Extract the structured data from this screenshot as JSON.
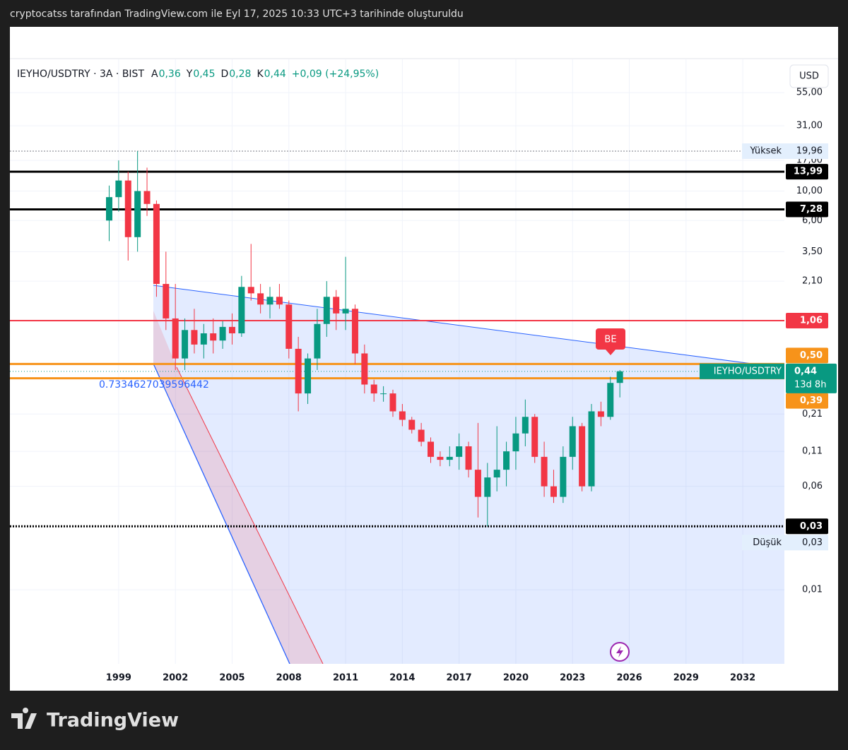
{
  "top_bar": "cryptocatss tarafından TradingView.com ile Eyl 17, 2025 10:33 UTC+3 tarihinde oluşturuldu",
  "footer": "TradingView",
  "chart_data": {
    "type": "candlestick",
    "legend": {
      "symbol": "IEYHO/USDTRY · 3A · BIST",
      "fields": [
        {
          "key": "A",
          "value": "0,36"
        },
        {
          "key": "Y",
          "value": "0,45"
        },
        {
          "key": "D",
          "value": "0,28"
        },
        {
          "key": "K",
          "value": "0,44"
        }
      ],
      "change": "+0,09 (+24,95%)"
    },
    "currency": "USD",
    "up_color": "#089981",
    "down_color": "#f23645",
    "x": [
      1998.5,
      1999,
      1999.5,
      2000,
      2000.5,
      2001,
      2001.5,
      2002,
      2002.5,
      2003,
      2003.5,
      2004,
      2004.5,
      2005,
      2005.5,
      2006,
      2006.5,
      2007,
      2007.5,
      2008,
      2008.5,
      2009,
      2009.5,
      2010,
      2010.5,
      2011,
      2011.5,
      2012,
      2012.5,
      2013,
      2013.5,
      2014,
      2014.5,
      2015,
      2015.5,
      2016,
      2016.5,
      2017,
      2017.5,
      2018,
      2018.5,
      2019,
      2019.5,
      2020,
      2020.5,
      2021,
      2021.5,
      2022,
      2022.5,
      2023,
      2023.5,
      2024,
      2024.5,
      2025,
      2025.5
    ],
    "open": [
      6,
      9,
      12,
      4.5,
      10,
      8,
      2.0,
      1.1,
      0.55,
      0.9,
      0.7,
      0.85,
      0.75,
      0.95,
      0.85,
      1.9,
      1.7,
      1.4,
      1.6,
      1.4,
      0.65,
      0.3,
      0.55,
      1.0,
      1.6,
      1.2,
      1.3,
      0.6,
      0.35,
      0.3,
      0.3,
      0.22,
      0.19,
      0.16,
      0.13,
      0.1,
      0.095,
      0.1,
      0.12,
      0.08,
      0.05,
      0.07,
      0.08,
      0.11,
      0.15,
      0.2,
      0.1,
      0.06,
      0.05,
      0.1,
      0.17,
      0.06,
      0.22,
      0.2,
      0.36
    ],
    "high": [
      11,
      17,
      14,
      19.96,
      15,
      8.5,
      3.5,
      2.0,
      1.1,
      1.3,
      1.0,
      1.1,
      1.05,
      1.2,
      2.3,
      4.0,
      2.0,
      1.9,
      2.0,
      1.5,
      0.8,
      0.6,
      1.3,
      2.1,
      1.8,
      3.2,
      1.4,
      0.7,
      0.38,
      0.34,
      0.32,
      0.25,
      0.2,
      0.18,
      0.14,
      0.11,
      0.12,
      0.15,
      0.13,
      0.18,
      0.09,
      0.17,
      0.13,
      0.2,
      0.27,
      0.21,
      0.13,
      0.08,
      0.12,
      0.2,
      0.18,
      0.25,
      0.26,
      0.4,
      0.45
    ],
    "low": [
      4.2,
      7,
      3,
      3.5,
      6.5,
      1.6,
      0.9,
      0.45,
      0.45,
      0.6,
      0.55,
      0.6,
      0.65,
      0.7,
      0.8,
      1.5,
      1.2,
      1.1,
      1.3,
      0.55,
      0.22,
      0.25,
      0.45,
      0.8,
      0.9,
      0.9,
      0.5,
      0.3,
      0.26,
      0.26,
      0.2,
      0.17,
      0.15,
      0.12,
      0.09,
      0.085,
      0.085,
      0.08,
      0.07,
      0.035,
      0.03,
      0.055,
      0.06,
      0.08,
      0.12,
      0.09,
      0.05,
      0.045,
      0.045,
      0.08,
      0.055,
      0.055,
      0.17,
      0.19,
      0.28
    ],
    "close": [
      9,
      12,
      4.5,
      10,
      8,
      2.0,
      1.1,
      0.55,
      0.9,
      0.7,
      0.85,
      0.75,
      0.95,
      0.85,
      1.9,
      1.7,
      1.4,
      1.6,
      1.4,
      0.65,
      0.3,
      0.55,
      1.0,
      1.6,
      1.2,
      1.3,
      0.6,
      0.35,
      0.3,
      0.3,
      0.22,
      0.19,
      0.16,
      0.13,
      0.1,
      0.095,
      0.1,
      0.12,
      0.08,
      0.05,
      0.07,
      0.08,
      0.11,
      0.15,
      0.2,
      0.1,
      0.06,
      0.05,
      0.1,
      0.17,
      0.06,
      0.22,
      0.2,
      0.36,
      0.44
    ],
    "log_scale": true,
    "grid": true,
    "xlim": [
      1993.25,
      2034.2
    ],
    "xticks": [
      1999,
      2002,
      2005,
      2008,
      2011,
      2014,
      2017,
      2020,
      2023,
      2026,
      2029,
      2032
    ],
    "ylim": [
      0.00277,
      98
    ],
    "yticks": [
      {
        "value": 55,
        "label": "55,00"
      },
      {
        "value": 31,
        "label": "31,00"
      },
      {
        "value": 17,
        "label": "17,00"
      },
      {
        "value": 10,
        "label": "10,00"
      },
      {
        "value": 6,
        "label": "6,00"
      },
      {
        "value": 3.5,
        "label": "3,50"
      },
      {
        "value": 2.1,
        "label": "2,10"
      },
      {
        "value": 0.21,
        "label": "0,21"
      },
      {
        "value": 0.11,
        "label": "0,11"
      },
      {
        "value": 0.06,
        "label": "0,06"
      },
      {
        "value": 0.01,
        "label": "0,01"
      }
    ],
    "levels": [
      {
        "value": 13.99,
        "label": "13,99",
        "color": "#000000"
      },
      {
        "value": 7.28,
        "label": "7,28",
        "color": "#000000"
      },
      {
        "value": 1.06,
        "label": "1,06",
        "color": "#f23645"
      },
      {
        "value": 0.5,
        "label": "0,50",
        "color": "#f7931a"
      },
      {
        "value": 0.39,
        "label": "0,39",
        "color": "#f7931a"
      },
      {
        "value": 0.03,
        "label": "0,03",
        "color": "#000000"
      }
    ],
    "high_mark": {
      "name": "Yüksek",
      "value": 19.96,
      "label": "19,96"
    },
    "low_mark": {
      "name": "Düşük",
      "value": 0.03,
      "label": "0,03"
    },
    "last_price": {
      "name": "IEYHO/USDTRY",
      "value": 0.44,
      "label": "0,44",
      "countdown": "13d 8h"
    },
    "annotations": [
      "0.7334627039596442",
      "BE"
    ]
  }
}
